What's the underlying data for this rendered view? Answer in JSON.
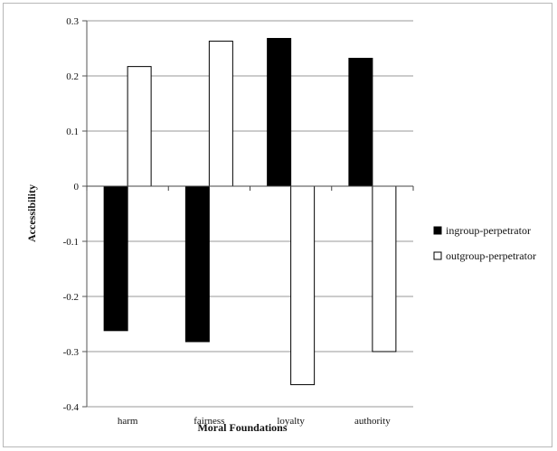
{
  "chart_data": {
    "type": "bar",
    "categories": [
      "harm",
      "fairness",
      "loyalty",
      "authority"
    ],
    "series": [
      {
        "name": "ingroup-perpetrator",
        "color": "#000000",
        "values": [
          -0.262,
          -0.282,
          0.268,
          0.232
        ]
      },
      {
        "name": "outgroup-perpetrator",
        "color": "#ffffff",
        "values": [
          0.217,
          0.263,
          -0.36,
          -0.3
        ]
      }
    ],
    "xlabel": "Moral Foundations",
    "ylabel": "Accessibility",
    "ylim": [
      -0.4,
      0.3
    ],
    "yticks": [
      0.3,
      0.2,
      0.1,
      0,
      -0.1,
      -0.2,
      -0.3,
      -0.4
    ],
    "ytick_labels": [
      "0.3",
      "0.2",
      "0.1",
      "0",
      "-0.1",
      "-0.2",
      "-0.3",
      "-0.4"
    ],
    "grid": true,
    "legend_position": "right"
  }
}
